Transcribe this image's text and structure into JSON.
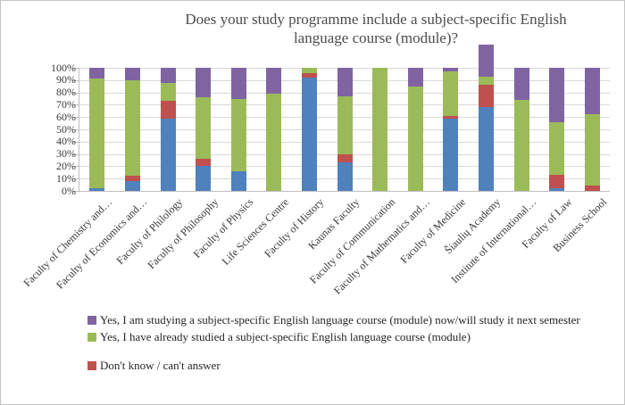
{
  "chart_data": {
    "type": "bar",
    "stacked": "percent",
    "title": "Does your study programme include a subject-specific English language course (module)?",
    "categories": [
      "Faculty of Chemistry and…",
      "Faculty of Economics and…",
      "Faculty of Philology",
      "Faculty of Philosophy",
      "Faculty of Physics",
      "Life Sciences Centre",
      "Faculty of History",
      "Kaunas Faculty",
      "Faculty of Communication",
      "Faculty of Mathematics and…",
      "Faculty of Medicine",
      "Šiaulių Academy",
      "Institute of International…",
      "Faculty of Law",
      "Business School"
    ],
    "y_axis": {
      "min": 0,
      "max": 100,
      "tick_labels": [
        "0%",
        "10%",
        "20%",
        "30%",
        "40%",
        "50%",
        "60%",
        "70%",
        "80%",
        "90%",
        "100%"
      ],
      "grid": true
    },
    "series": [
      {
        "name": "",
        "legend_visible": false,
        "color": "#4F81BD",
        "values": [
          2,
          8,
          59,
          20,
          16,
          0,
          92,
          23,
          0,
          0,
          59,
          68,
          0,
          2,
          0
        ]
      },
      {
        "name": "Don't know / can't answer",
        "color": "#C0504D",
        "values": [
          0,
          4,
          14,
          6,
          0,
          0,
          4,
          7,
          0,
          0,
          2,
          18,
          0,
          11,
          4
        ]
      },
      {
        "name": "Yes, I have already studied a subject-specific English language course (module)",
        "color": "#9BBB59",
        "values": [
          89,
          78,
          15,
          50,
          59,
          79,
          4,
          47,
          100,
          85,
          36,
          7,
          74,
          43,
          58
        ]
      },
      {
        "name": "Yes, I am studying a subject-specific English language course (module) now/will study it next semester",
        "color": "#8064A2",
        "values": [
          9,
          10,
          12,
          24,
          25,
          21,
          0,
          23,
          0,
          15,
          3,
          26,
          26,
          44,
          38
        ]
      }
    ],
    "legend": {
      "position": "bottom-left",
      "entries": [
        {
          "label": "Yes, I am studying a subject-specific English language course (module) now/will study it next semester",
          "color": "#8064A2"
        },
        {
          "label": "Yes, I have already studied a subject-specific English language course (module)",
          "color": "#9BBB59"
        },
        {
          "label": "Don't know / can't answer",
          "color": "#C0504D"
        }
      ]
    },
    "grid_color": "#d9d9d9",
    "axis_color": "#bfbfbf"
  }
}
